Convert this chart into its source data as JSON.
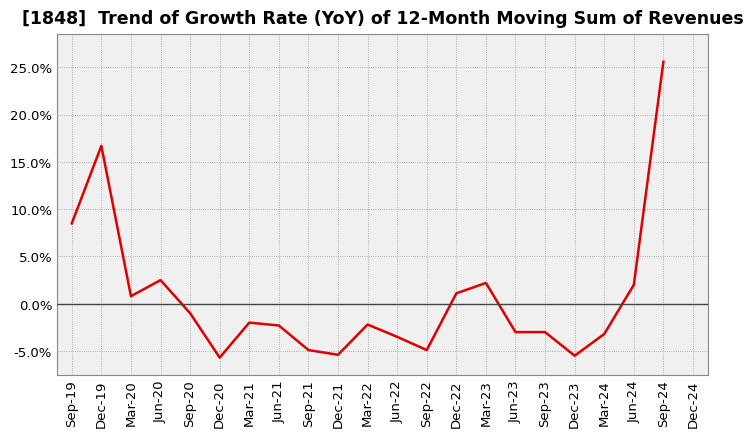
{
  "title": "[1848]  Trend of Growth Rate (YoY) of 12-Month Moving Sum of Revenues",
  "x_labels": [
    "Sep-19",
    "Dec-19",
    "Mar-20",
    "Jun-20",
    "Sep-20",
    "Dec-20",
    "Mar-21",
    "Jun-21",
    "Sep-21",
    "Dec-21",
    "Mar-22",
    "Jun-22",
    "Sep-22",
    "Dec-22",
    "Mar-23",
    "Jun-23",
    "Sep-23",
    "Dec-23",
    "Mar-24",
    "Jun-24",
    "Sep-24",
    "Dec-24"
  ],
  "y_values": [
    0.085,
    0.167,
    0.008,
    0.025,
    -0.01,
    -0.057,
    -0.02,
    -0.023,
    -0.049,
    -0.054,
    -0.022,
    -0.035,
    -0.049,
    0.011,
    0.022,
    -0.03,
    -0.03,
    -0.055,
    -0.032,
    0.02,
    0.256,
    null
  ],
  "line_color": "#dd0000",
  "line_width": 1.8,
  "background_color": "#ffffff",
  "plot_bg_color": "#f0f0f0",
  "grid_color": "#999999",
  "zero_line_color": "#444444",
  "ylim": [
    -0.075,
    0.285
  ],
  "yticks": [
    -0.05,
    0.0,
    0.05,
    0.1,
    0.15,
    0.2,
    0.25
  ],
  "title_fontsize": 12.5,
  "tick_fontsize": 9.5,
  "title_fontweight": "bold"
}
